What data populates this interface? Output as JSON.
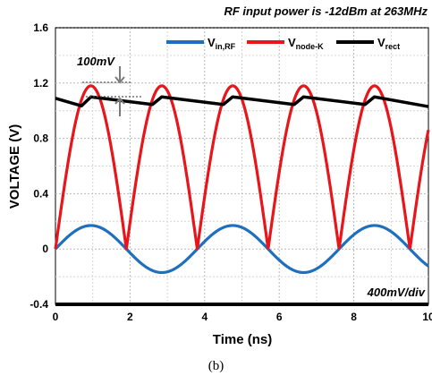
{
  "chart_data": {
    "type": "line",
    "title": "RF input power is -12dBm at 263MHz",
    "xlabel": "Time (ns)",
    "ylabel": "VOLTAGE (V)",
    "xlim": [
      0,
      10
    ],
    "ylim": [
      -0.4,
      1.6
    ],
    "xticks": [
      "0",
      "2",
      "4",
      "6",
      "8",
      "10"
    ],
    "yticks": [
      "-0.4",
      "0",
      "0.4",
      "0.8",
      "1.2",
      "1.6"
    ],
    "grid": true,
    "legend_position": "top",
    "period_ns": 3.802,
    "series": [
      {
        "name": "V",
        "name_sub": "in,RF",
        "color": "#1f6fbf",
        "model": "sine",
        "amplitude": 0.17,
        "offset": 0.0
      },
      {
        "name": "V",
        "name_sub": "node-K",
        "color": "#e8161b",
        "model": "abs-sine",
        "peak": 1.18,
        "offset": 0.0
      },
      {
        "name": "V",
        "name_sub": "rect",
        "color": "#000000",
        "model": "sawtooth",
        "points": [
          [
            0,
            1.09
          ],
          [
            0.95,
            1.1
          ],
          [
            2.85,
            1.1
          ],
          [
            4.75,
            1.1
          ],
          [
            6.65,
            1.1
          ],
          [
            8.55,
            1.1
          ],
          [
            10,
            1.03
          ]
        ],
        "decay_per_cycle": 0.055
      }
    ],
    "annotations": [
      {
        "text": "100mV",
        "x": 0.6,
        "y": 1.27
      },
      {
        "text": "400mV/div",
        "x": 9.9,
        "y": -0.32
      }
    ]
  },
  "caption": "(b)"
}
